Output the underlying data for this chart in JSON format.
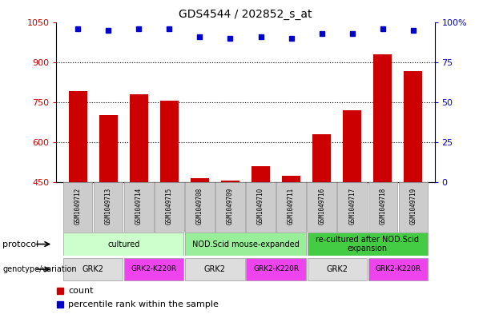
{
  "title": "GDS4544 / 202852_s_at",
  "samples": [
    "GSM1049712",
    "GSM1049713",
    "GSM1049714",
    "GSM1049715",
    "GSM1049708",
    "GSM1049709",
    "GSM1049710",
    "GSM1049711",
    "GSM1049716",
    "GSM1049717",
    "GSM1049718",
    "GSM1049719"
  ],
  "counts": [
    790,
    700,
    780,
    755,
    465,
    455,
    510,
    475,
    630,
    720,
    930,
    865
  ],
  "percentiles": [
    96,
    95,
    96,
    96,
    91,
    90,
    91,
    90,
    93,
    93,
    96,
    95
  ],
  "ylim_left": [
    450,
    1050
  ],
  "ylim_right": [
    0,
    100
  ],
  "yticks_left": [
    450,
    600,
    750,
    900,
    1050
  ],
  "yticks_right": [
    0,
    25,
    50,
    75,
    100
  ],
  "bar_color": "#cc0000",
  "dot_color": "#0000cc",
  "grid_lines": [
    600,
    750,
    900
  ],
  "protocol_groups": [
    {
      "label": "cultured",
      "start": 0,
      "end": 4,
      "color": "#ccffcc"
    },
    {
      "label": "NOD.Scid mouse-expanded",
      "start": 4,
      "end": 8,
      "color": "#99ee99"
    },
    {
      "label": "re-cultured after NOD.Scid\nexpansion",
      "start": 8,
      "end": 12,
      "color": "#44cc44"
    }
  ],
  "genotype_groups": [
    {
      "label": "GRK2",
      "start": 0,
      "end": 2,
      "color": "#dddddd"
    },
    {
      "label": "GRK2-K220R",
      "start": 2,
      "end": 4,
      "color": "#ee44ee"
    },
    {
      "label": "GRK2",
      "start": 4,
      "end": 6,
      "color": "#dddddd"
    },
    {
      "label": "GRK2-K220R",
      "start": 6,
      "end": 8,
      "color": "#ee44ee"
    },
    {
      "label": "GRK2",
      "start": 8,
      "end": 10,
      "color": "#dddddd"
    },
    {
      "label": "GRK2-K220R",
      "start": 10,
      "end": 12,
      "color": "#ee44ee"
    }
  ],
  "legend_items": [
    {
      "label": "count",
      "color": "#cc0000"
    },
    {
      "label": "percentile rank within the sample",
      "color": "#0000cc"
    }
  ],
  "background_color": "#ffffff",
  "axis_left_color": "#cc0000",
  "axis_right_color": "#0000cc",
  "sample_box_color": "#cccccc"
}
